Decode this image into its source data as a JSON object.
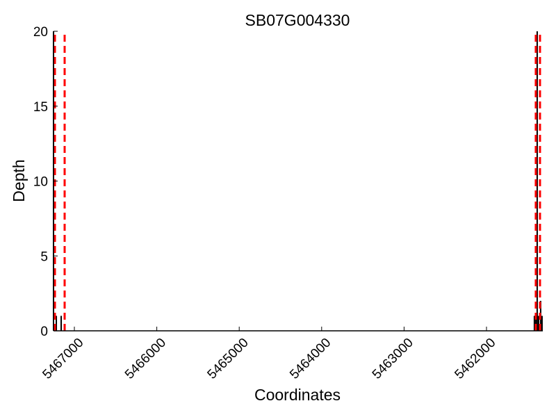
{
  "chart_data": {
    "type": "bar",
    "title": "SB07G004330",
    "xlabel": "Coordinates",
    "ylabel": "Depth",
    "xlim": [
      5467253,
      5461317
    ],
    "x_reversed": true,
    "ylim": [
      0,
      20
    ],
    "xticks": [
      5467000,
      5466000,
      5465000,
      5464000,
      5463000,
      5462000
    ],
    "yticks": [
      0,
      5,
      10,
      15,
      20
    ],
    "grid": false,
    "depth_bars": [
      {
        "x": 5467253,
        "y": 20
      },
      {
        "x": 5467219,
        "y": 1
      },
      {
        "x": 5467160,
        "y": 1
      },
      {
        "x": 5461419,
        "y": 1
      },
      {
        "x": 5461402,
        "y": 1
      },
      {
        "x": 5461385,
        "y": 20
      },
      {
        "x": 5461368,
        "y": 1
      },
      {
        "x": 5461343,
        "y": 2
      },
      {
        "x": 5461326,
        "y": 1
      }
    ],
    "boundary_lines": [
      5467236,
      5467118,
      5461402,
      5461351
    ],
    "colors": {
      "bars": "#000000",
      "boundary_lines": "#ff0000"
    }
  }
}
